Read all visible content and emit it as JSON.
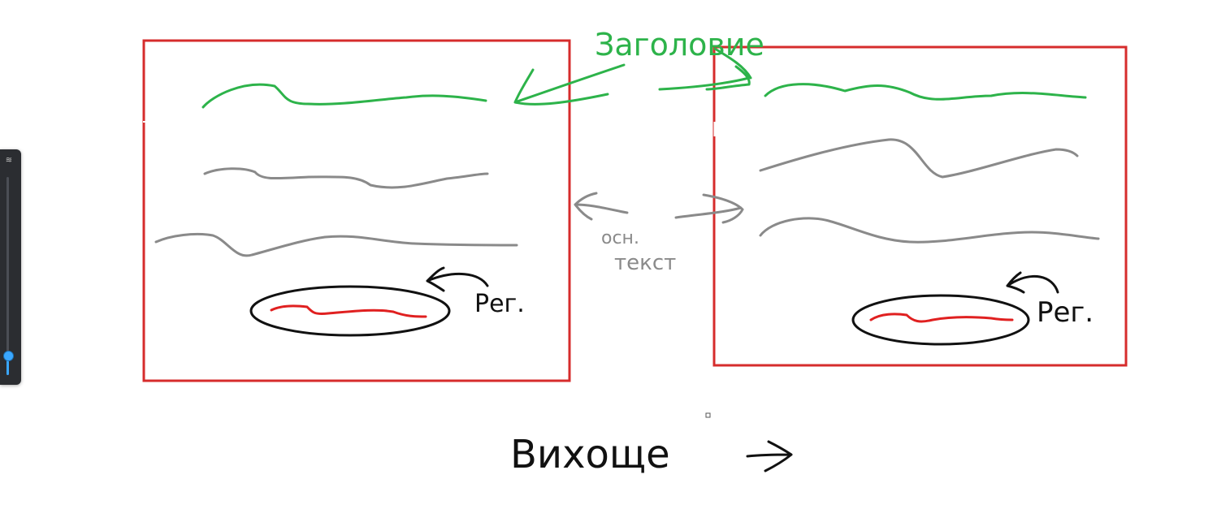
{
  "whiteboard": {
    "labels": {
      "headings_label": "Заголовие",
      "main_text_label_line1": "осн.",
      "main_text_label_line2": "текст",
      "region_label_left": "Рег.",
      "region_label_right": "Рег.",
      "output_label": "Вихоще"
    },
    "colors": {
      "frame": "#d62c2c",
      "heading_stroke": "#2db34a",
      "body_stroke": "#8a8a8a",
      "region_stroke": "#e02020",
      "ink": "#111111",
      "panel_accent": "#3aa7ff"
    }
  },
  "toolpanel": {
    "icon": "stroke-width-icon",
    "slider_level": 0.1
  }
}
